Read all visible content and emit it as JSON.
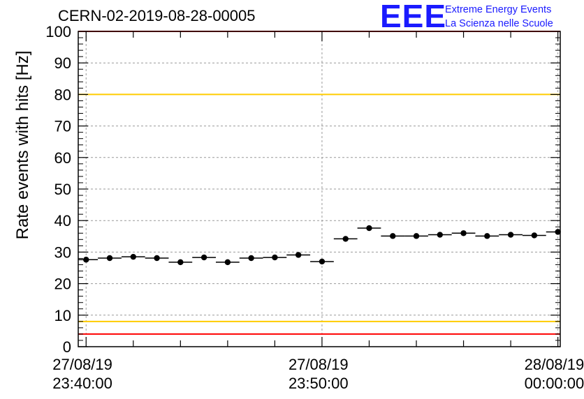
{
  "title": "CERN-02-2019-08-28-00005",
  "logo": {
    "mark": "EEE",
    "line1": "Extreme Energy Events",
    "line2": "La Scienza nelle Scuole",
    "color": "#1a1aff"
  },
  "chart_data": {
    "type": "scatter",
    "title": "CERN-02-2019-08-28-00005",
    "ylabel": "Rate events with hits [Hz]",
    "xlabel": "",
    "ylim": [
      0,
      100
    ],
    "yticks": [
      0,
      10,
      20,
      30,
      40,
      50,
      60,
      70,
      80,
      90,
      100
    ],
    "xlim": [
      "27/08/19 23:39:40",
      "28/08/19 00:00:00"
    ],
    "xticks": [
      {
        "date": "27/08/19",
        "time": "23:40:00"
      },
      {
        "date": "27/08/19",
        "time": "23:50:00"
      },
      {
        "date": "28/08/19",
        "time": "00:00:00"
      }
    ],
    "grid": true,
    "reference_lines": [
      {
        "y": 100,
        "color": "#ff0000"
      },
      {
        "y": 80,
        "color": "#ffcc00"
      },
      {
        "y": 8,
        "color": "#ffcc00"
      },
      {
        "y": 4,
        "color": "#ff0000"
      }
    ],
    "series": [
      {
        "marker_color": "#000000",
        "bin_width_min": 1,
        "points": [
          {
            "t": "23:40:00",
            "y": 27.6
          },
          {
            "t": "23:41:00",
            "y": 28.1
          },
          {
            "t": "23:42:00",
            "y": 28.5
          },
          {
            "t": "23:43:00",
            "y": 28.1
          },
          {
            "t": "23:44:00",
            "y": 26.8
          },
          {
            "t": "23:45:00",
            "y": 28.3
          },
          {
            "t": "23:46:00",
            "y": 26.8
          },
          {
            "t": "23:47:00",
            "y": 28.1
          },
          {
            "t": "23:48:00",
            "y": 28.3
          },
          {
            "t": "23:49:00",
            "y": 29.1
          },
          {
            "t": "23:50:00",
            "y": 27.0
          },
          {
            "t": "23:51:00",
            "y": 34.2
          },
          {
            "t": "23:52:00",
            "y": 37.6
          },
          {
            "t": "23:53:00",
            "y": 35.1
          },
          {
            "t": "23:54:00",
            "y": 35.1
          },
          {
            "t": "23:55:00",
            "y": 35.5
          },
          {
            "t": "23:56:00",
            "y": 36.0
          },
          {
            "t": "23:57:00",
            "y": 35.1
          },
          {
            "t": "23:58:00",
            "y": 35.5
          },
          {
            "t": "23:59:00",
            "y": 35.3
          },
          {
            "t": "00:00:00",
            "y": 36.4
          }
        ]
      }
    ]
  }
}
